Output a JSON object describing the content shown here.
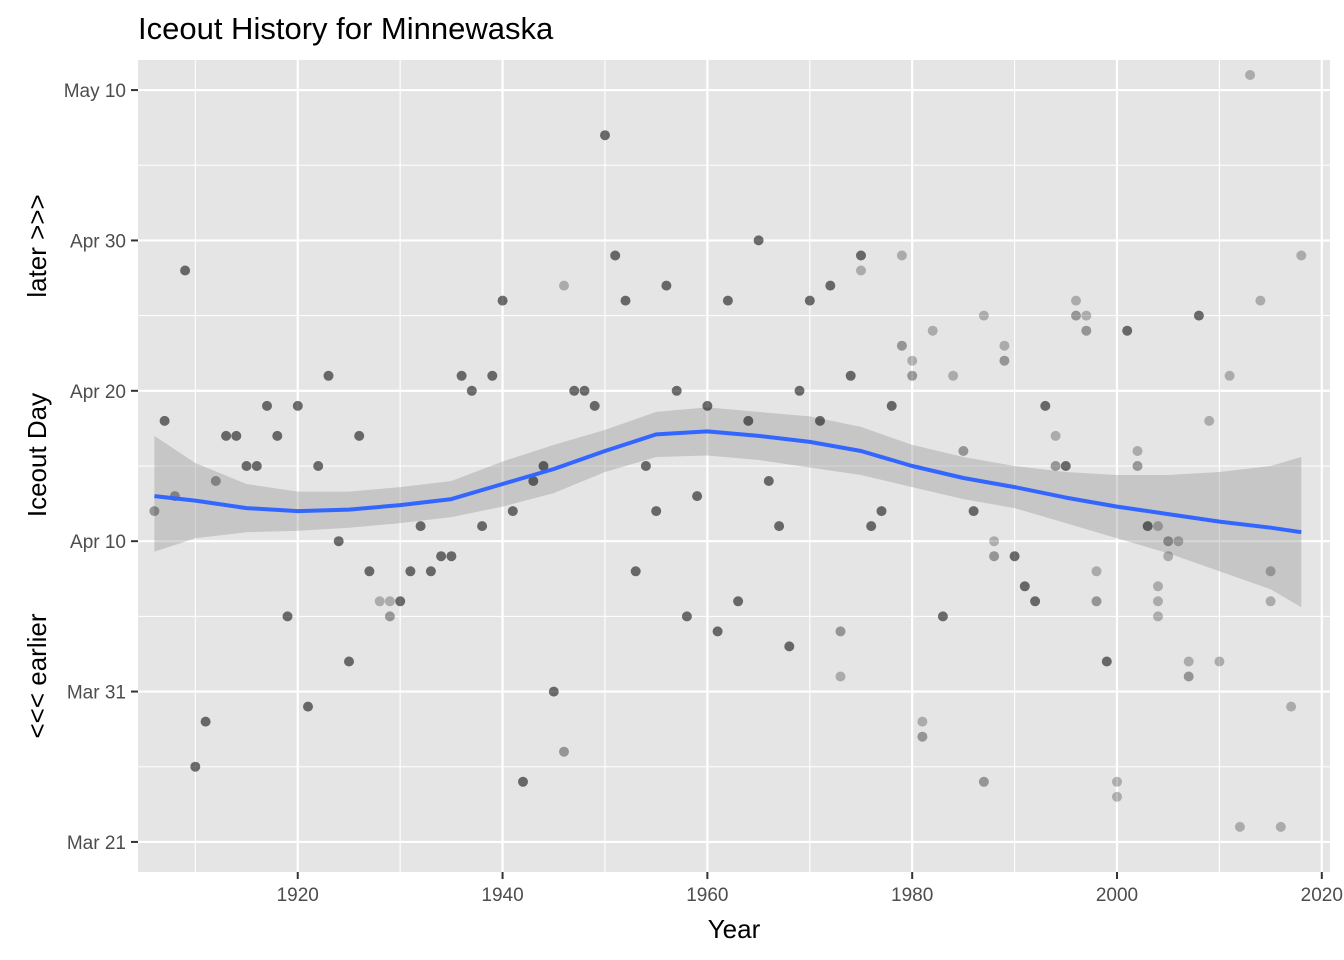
{
  "chart_data": {
    "type": "scatter",
    "title": "Iceout History for Minnewaska",
    "xlabel": "Year",
    "ylabel_parts": [
      "<<< earlier",
      "Iceout Day",
      "later >>>"
    ],
    "x_ticks": [
      1920,
      1940,
      1960,
      1980,
      2000,
      2020
    ],
    "y_ticks": [
      "Mar 21",
      "Mar 31",
      "Apr 10",
      "Apr 20",
      "Apr 30",
      "May 10"
    ],
    "xlim": [
      1904.4,
      2020.8
    ],
    "ylim": [
      "Mar 19",
      "May 12"
    ],
    "grid": true,
    "colors": {
      "panel": "#e5e5e5",
      "grid": "#ffffff",
      "point": "#000000",
      "smooth_line": "#3366ff",
      "ribbon": "#999999"
    },
    "points": [
      {
        "x": 1906,
        "y": "Apr 12",
        "a": 0.35
      },
      {
        "x": 1907,
        "y": "Apr 18",
        "a": 0.55
      },
      {
        "x": 1908,
        "y": "Apr 13",
        "a": 0.35
      },
      {
        "x": 1909,
        "y": "Apr 28",
        "a": 0.55
      },
      {
        "x": 1910,
        "y": "Mar 26",
        "a": 0.55
      },
      {
        "x": 1911,
        "y": "Mar 29",
        "a": 0.55
      },
      {
        "x": 1912,
        "y": "Apr 14",
        "a": 0.35
      },
      {
        "x": 1913,
        "y": "Apr 17",
        "a": 0.55
      },
      {
        "x": 1914,
        "y": "Apr 17",
        "a": 0.55
      },
      {
        "x": 1915,
        "y": "Apr 15",
        "a": 0.55
      },
      {
        "x": 1916,
        "y": "Apr 15",
        "a": 0.55
      },
      {
        "x": 1917,
        "y": "Apr 19",
        "a": 0.55
      },
      {
        "x": 1918,
        "y": "Apr 17",
        "a": 0.55
      },
      {
        "x": 1919,
        "y": "Apr 5",
        "a": 0.55
      },
      {
        "x": 1920,
        "y": "Apr 19",
        "a": 0.55
      },
      {
        "x": 1921,
        "y": "Mar 30",
        "a": 0.55
      },
      {
        "x": 1922,
        "y": "Apr 15",
        "a": 0.55
      },
      {
        "x": 1923,
        "y": "Apr 21",
        "a": 0.55
      },
      {
        "x": 1924,
        "y": "Apr 10",
        "a": 0.55
      },
      {
        "x": 1925,
        "y": "Apr 2",
        "a": 0.55
      },
      {
        "x": 1926,
        "y": "Apr 17",
        "a": 0.55
      },
      {
        "x": 1927,
        "y": "Apr 8",
        "a": 0.55
      },
      {
        "x": 1928,
        "y": "Apr 6",
        "a": 0.25
      },
      {
        "x": 1929,
        "y": "Apr 6",
        "a": 0.25
      },
      {
        "x": 1929,
        "y": "Apr 5",
        "a": 0.35
      },
      {
        "x": 1930,
        "y": "Apr 6",
        "a": 0.55
      },
      {
        "x": 1931,
        "y": "Apr 8",
        "a": 0.55
      },
      {
        "x": 1932,
        "y": "Apr 11",
        "a": 0.55
      },
      {
        "x": 1933,
        "y": "Apr 8",
        "a": 0.55
      },
      {
        "x": 1934,
        "y": "Apr 9",
        "a": 0.55
      },
      {
        "x": 1935,
        "y": "Apr 9",
        "a": 0.55
      },
      {
        "x": 1936,
        "y": "Apr 21",
        "a": 0.55
      },
      {
        "x": 1937,
        "y": "Apr 20",
        "a": 0.55
      },
      {
        "x": 1938,
        "y": "Apr 11",
        "a": 0.55
      },
      {
        "x": 1939,
        "y": "Apr 21",
        "a": 0.55
      },
      {
        "x": 1940,
        "y": "Apr 26",
        "a": 0.55
      },
      {
        "x": 1941,
        "y": "Apr 12",
        "a": 0.55
      },
      {
        "x": 1942,
        "y": "Mar 25",
        "a": 0.55
      },
      {
        "x": 1943,
        "y": "Apr 14",
        "a": 0.55
      },
      {
        "x": 1944,
        "y": "Apr 15",
        "a": 0.55
      },
      {
        "x": 1945,
        "y": "Mar 31",
        "a": 0.55
      },
      {
        "x": 1946,
        "y": "Apr 27",
        "a": 0.25
      },
      {
        "x": 1946,
        "y": "Mar 27",
        "a": 0.35
      },
      {
        "x": 1947,
        "y": "Apr 20",
        "a": 0.55
      },
      {
        "x": 1948,
        "y": "Apr 20",
        "a": 0.55
      },
      {
        "x": 1949,
        "y": "Apr 19",
        "a": 0.55
      },
      {
        "x": 1950,
        "y": "May 7",
        "a": 0.55
      },
      {
        "x": 1951,
        "y": "Apr 29",
        "a": 0.55
      },
      {
        "x": 1952,
        "y": "Apr 26",
        "a": 0.55
      },
      {
        "x": 1953,
        "y": "Apr 8",
        "a": 0.55
      },
      {
        "x": 1954,
        "y": "Apr 15",
        "a": 0.55
      },
      {
        "x": 1955,
        "y": "Apr 12",
        "a": 0.55
      },
      {
        "x": 1956,
        "y": "Apr 27",
        "a": 0.55
      },
      {
        "x": 1957,
        "y": "Apr 20",
        "a": 0.55
      },
      {
        "x": 1958,
        "y": "Apr 5",
        "a": 0.55
      },
      {
        "x": 1959,
        "y": "Apr 13",
        "a": 0.55
      },
      {
        "x": 1960,
        "y": "Apr 19",
        "a": 0.55
      },
      {
        "x": 1961,
        "y": "Apr 4",
        "a": 0.55
      },
      {
        "x": 1962,
        "y": "Apr 26",
        "a": 0.55
      },
      {
        "x": 1963,
        "y": "Apr 6",
        "a": 0.55
      },
      {
        "x": 1964,
        "y": "Apr 18",
        "a": 0.55
      },
      {
        "x": 1965,
        "y": "Apr 30",
        "a": 0.55
      },
      {
        "x": 1966,
        "y": "Apr 14",
        "a": 0.55
      },
      {
        "x": 1967,
        "y": "Apr 11",
        "a": 0.55
      },
      {
        "x": 1968,
        "y": "Apr 3",
        "a": 0.55
      },
      {
        "x": 1969,
        "y": "Apr 20",
        "a": 0.55
      },
      {
        "x": 1970,
        "y": "Apr 26",
        "a": 0.55
      },
      {
        "x": 1971,
        "y": "Apr 18",
        "a": 0.55
      },
      {
        "x": 1972,
        "y": "Apr 27",
        "a": 0.55
      },
      {
        "x": 1973,
        "y": "Apr 4",
        "a": 0.35
      },
      {
        "x": 1973,
        "y": "Apr 1",
        "a": 0.25
      },
      {
        "x": 1974,
        "y": "Apr 21",
        "a": 0.55
      },
      {
        "x": 1975,
        "y": "Apr 29",
        "a": 0.55
      },
      {
        "x": 1975,
        "y": "Apr 28",
        "a": 0.25
      },
      {
        "x": 1976,
        "y": "Apr 11",
        "a": 0.55
      },
      {
        "x": 1977,
        "y": "Apr 12",
        "a": 0.55
      },
      {
        "x": 1978,
        "y": "Apr 19",
        "a": 0.55
      },
      {
        "x": 1979,
        "y": "Apr 29",
        "a": 0.25
      },
      {
        "x": 1979,
        "y": "Apr 23",
        "a": 0.35
      },
      {
        "x": 1980,
        "y": "Apr 22",
        "a": 0.25
      },
      {
        "x": 1980,
        "y": "Apr 21",
        "a": 0.35
      },
      {
        "x": 1981,
        "y": "Mar 29",
        "a": 0.25
      },
      {
        "x": 1981,
        "y": "Mar 28",
        "a": 0.35
      },
      {
        "x": 1982,
        "y": "Apr 24",
        "a": 0.25
      },
      {
        "x": 1983,
        "y": "Apr 5",
        "a": 0.55
      },
      {
        "x": 1984,
        "y": "Apr 21",
        "a": 0.25
      },
      {
        "x": 1985,
        "y": "Apr 16",
        "a": 0.35
      },
      {
        "x": 1986,
        "y": "Apr 12",
        "a": 0.55
      },
      {
        "x": 1987,
        "y": "Apr 25",
        "a": 0.25
      },
      {
        "x": 1987,
        "y": "Mar 25",
        "a": 0.35
      },
      {
        "x": 1988,
        "y": "Apr 10",
        "a": 0.25
      },
      {
        "x": 1988,
        "y": "Apr 9",
        "a": 0.35
      },
      {
        "x": 1989,
        "y": "Apr 23",
        "a": 0.25
      },
      {
        "x": 1989,
        "y": "Apr 22",
        "a": 0.35
      },
      {
        "x": 1990,
        "y": "Apr 9",
        "a": 0.55
      },
      {
        "x": 1991,
        "y": "Apr 7",
        "a": 0.55
      },
      {
        "x": 1992,
        "y": "Apr 6",
        "a": 0.55
      },
      {
        "x": 1993,
        "y": "Apr 19",
        "a": 0.55
      },
      {
        "x": 1994,
        "y": "Apr 17",
        "a": 0.25
      },
      {
        "x": 1994,
        "y": "Apr 15",
        "a": 0.35
      },
      {
        "x": 1995,
        "y": "Apr 15",
        "a": 0.55
      },
      {
        "x": 1996,
        "y": "Apr 26",
        "a": 0.25
      },
      {
        "x": 1996,
        "y": "Apr 25",
        "a": 0.35
      },
      {
        "x": 1997,
        "y": "Apr 25",
        "a": 0.25
      },
      {
        "x": 1997,
        "y": "Apr 24",
        "a": 0.35
      },
      {
        "x": 1998,
        "y": "Apr 8",
        "a": 0.25
      },
      {
        "x": 1998,
        "y": "Apr 6",
        "a": 0.35
      },
      {
        "x": 1999,
        "y": "Apr 2",
        "a": 0.55
      },
      {
        "x": 2000,
        "y": "Mar 25",
        "a": 0.25
      },
      {
        "x": 2000,
        "y": "Mar 24",
        "a": 0.25
      },
      {
        "x": 2001,
        "y": "Apr 24",
        "a": 0.55
      },
      {
        "x": 2002,
        "y": "Apr 16",
        "a": 0.25
      },
      {
        "x": 2002,
        "y": "Apr 15",
        "a": 0.35
      },
      {
        "x": 2003,
        "y": "Apr 11",
        "a": 0.55
      },
      {
        "x": 2004,
        "y": "Apr 11",
        "a": 0.25
      },
      {
        "x": 2004,
        "y": "Apr 7",
        "a": 0.25
      },
      {
        "x": 2004,
        "y": "Apr 6",
        "a": 0.25
      },
      {
        "x": 2004,
        "y": "Apr 5",
        "a": 0.25
      },
      {
        "x": 2005,
        "y": "Apr 10",
        "a": 0.35
      },
      {
        "x": 2005,
        "y": "Apr 9",
        "a": 0.25
      },
      {
        "x": 2006,
        "y": "Apr 10",
        "a": 0.25
      },
      {
        "x": 2007,
        "y": "Apr 2",
        "a": 0.25
      },
      {
        "x": 2007,
        "y": "Apr 1",
        "a": 0.35
      },
      {
        "x": 2008,
        "y": "Apr 25",
        "a": 0.55
      },
      {
        "x": 2009,
        "y": "Apr 18",
        "a": 0.25
      },
      {
        "x": 2010,
        "y": "Apr 2",
        "a": 0.25
      },
      {
        "x": 2011,
        "y": "Apr 21",
        "a": 0.25
      },
      {
        "x": 2012,
        "y": "Mar 22",
        "a": 0.25
      },
      {
        "x": 2013,
        "y": "May 11",
        "a": 0.25
      },
      {
        "x": 2014,
        "y": "Apr 26",
        "a": 0.25
      },
      {
        "x": 2015,
        "y": "Apr 8",
        "a": 0.25
      },
      {
        "x": 2015,
        "y": "Apr 6",
        "a": 0.25
      },
      {
        "x": 2016,
        "y": "Mar 22",
        "a": 0.25
      },
      {
        "x": 2017,
        "y": "Mar 30",
        "a": 0.25
      },
      {
        "x": 2018,
        "y": "Apr 29",
        "a": 0.25
      }
    ],
    "smooth": {
      "x": [
        1906,
        1910,
        1915,
        1920,
        1925,
        1930,
        1935,
        1940,
        1945,
        1950,
        1955,
        1960,
        1965,
        1970,
        1975,
        1980,
        1985,
        1990,
        1995,
        2000,
        2005,
        2010,
        2015,
        2018
      ],
      "y": [
        "Apr 13",
        "Apr 12.7",
        "Apr 12.2",
        "Apr 12",
        "Apr 12.1",
        "Apr 12.4",
        "Apr 12.8",
        "Apr 13.8",
        "Apr 14.8",
        "Apr 16",
        "Apr 17.1",
        "Apr 17.3",
        "Apr 17",
        "Apr 16.6",
        "Apr 16",
        "Apr 15",
        "Apr 14.2",
        "Apr 13.6",
        "Apr 12.9",
        "Apr 12.3",
        "Apr 11.8",
        "Apr 11.3",
        "Apr 10.9",
        "Apr 10.6"
      ],
      "ymin": [
        "Apr 9.3",
        "Apr 10.2",
        "Apr 10.6",
        "Apr 10.7",
        "Apr 10.9",
        "Apr 11.2",
        "Apr 11.6",
        "Apr 12.3",
        "Apr 13.2",
        "Apr 14.6",
        "Apr 15.6",
        "Apr 15.7",
        "Apr 15.4",
        "Apr 14.9",
        "Apr 14.4",
        "Apr 13.6",
        "Apr 12.8",
        "Apr 12.2",
        "Apr 11.2",
        "Apr 10.2",
        "Apr 9.2",
        "Apr 8.0",
        "Apr 6.8",
        "Apr 5.6"
      ],
      "ymax": [
        "Apr 17.0",
        "Apr 15.2",
        "Apr 13.8",
        "Apr 13.3",
        "Apr 13.3",
        "Apr 13.6",
        "Apr 14.0",
        "Apr 15.3",
        "Apr 16.4",
        "Apr 17.4",
        "Apr 18.6",
        "Apr 18.9",
        "Apr 18.6",
        "Apr 18.3",
        "Apr 17.6",
        "Apr 16.4",
        "Apr 15.6",
        "Apr 15.0",
        "Apr 14.6",
        "Apr 14.4",
        "Apr 14.4",
        "Apr 14.6",
        "Apr 15.0",
        "Apr 15.6"
      ]
    }
  }
}
